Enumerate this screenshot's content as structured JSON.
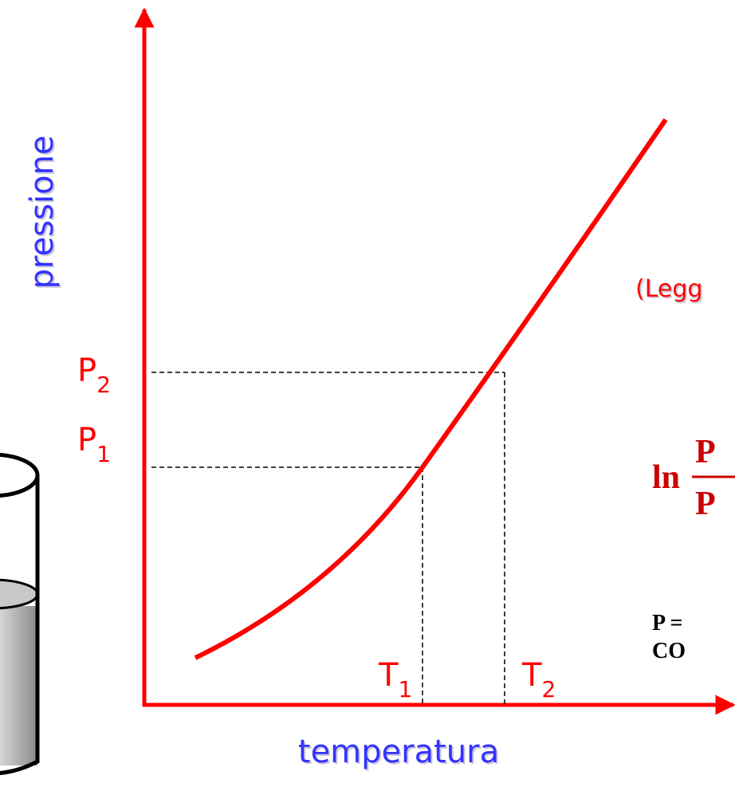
{
  "axes": {
    "y_label": "pressione",
    "x_label": "temperatura"
  },
  "points": [
    {
      "symbol": "P",
      "subscript": "2"
    },
    {
      "symbol": "P",
      "subscript": "1"
    },
    {
      "symbol": "T",
      "subscript": "1"
    },
    {
      "symbol": "T",
      "subscript": "2"
    }
  ],
  "formula": {
    "law": "(Legg",
    "ln": "ln",
    "numerator": "P",
    "denominator": "P",
    "line1": "P =",
    "line2": "CO"
  }
}
